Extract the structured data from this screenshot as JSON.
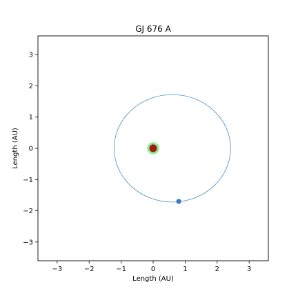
{
  "chart_data": {
    "type": "scatter",
    "title": "GJ 676 A",
    "xlabel": "Length (AU)",
    "ylabel": "Length (AU)",
    "xlim": [
      -3.6,
      3.6
    ],
    "ylim": [
      -3.6,
      3.6
    ],
    "x_ticks": [
      -3,
      -2,
      -1,
      0,
      1,
      2,
      3
    ],
    "y_ticks": [
      -3,
      -2,
      -1,
      0,
      1,
      2,
      3
    ],
    "x_tick_labels": [
      "−3",
      "−2",
      "−1",
      "0",
      "1",
      "2",
      "3"
    ],
    "y_tick_labels": [
      "−3",
      "−2",
      "−1",
      "0",
      "1",
      "2",
      "3"
    ],
    "grid": false,
    "habitable_zone": {
      "center": [
        0,
        0
      ],
      "radius": 0.19,
      "color": "#90ee90"
    },
    "star": {
      "x": 0,
      "y": 0,
      "radius": 0.12,
      "color": "#a01c1c"
    },
    "orbit": {
      "center": [
        0.6,
        0.0
      ],
      "semi_major": 1.82,
      "semi_minor": 1.72,
      "color": "#4a8ec2"
    },
    "planet": {
      "x": 0.8,
      "y": -1.7,
      "color": "#3b7bbf"
    }
  }
}
